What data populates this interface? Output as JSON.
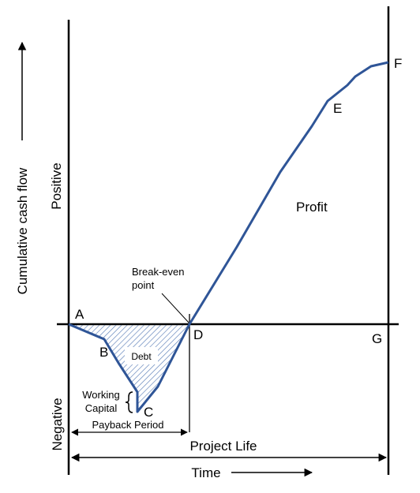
{
  "labels": {
    "point_a": "A",
    "point_b": "B",
    "point_c": "C",
    "point_d": "D",
    "point_e": "E",
    "point_f": "F",
    "point_g": "G",
    "debt": "Debt",
    "profit": "Profit",
    "break_even_line1": "Break-even",
    "break_even_line2": "point",
    "working_capital_line1": "Working",
    "working_capital_line2": "Capital",
    "payback_period": "Payback Period",
    "project_life": "Project Life",
    "time": "Time",
    "y_axis": "Cumulative cash flow",
    "positive": "Positive",
    "negative": "Negative"
  },
  "colors": {
    "curve": "#2F5597",
    "hatch": "#5B7FB8",
    "axes": "#000000",
    "background": "#FFFFFF"
  }
}
